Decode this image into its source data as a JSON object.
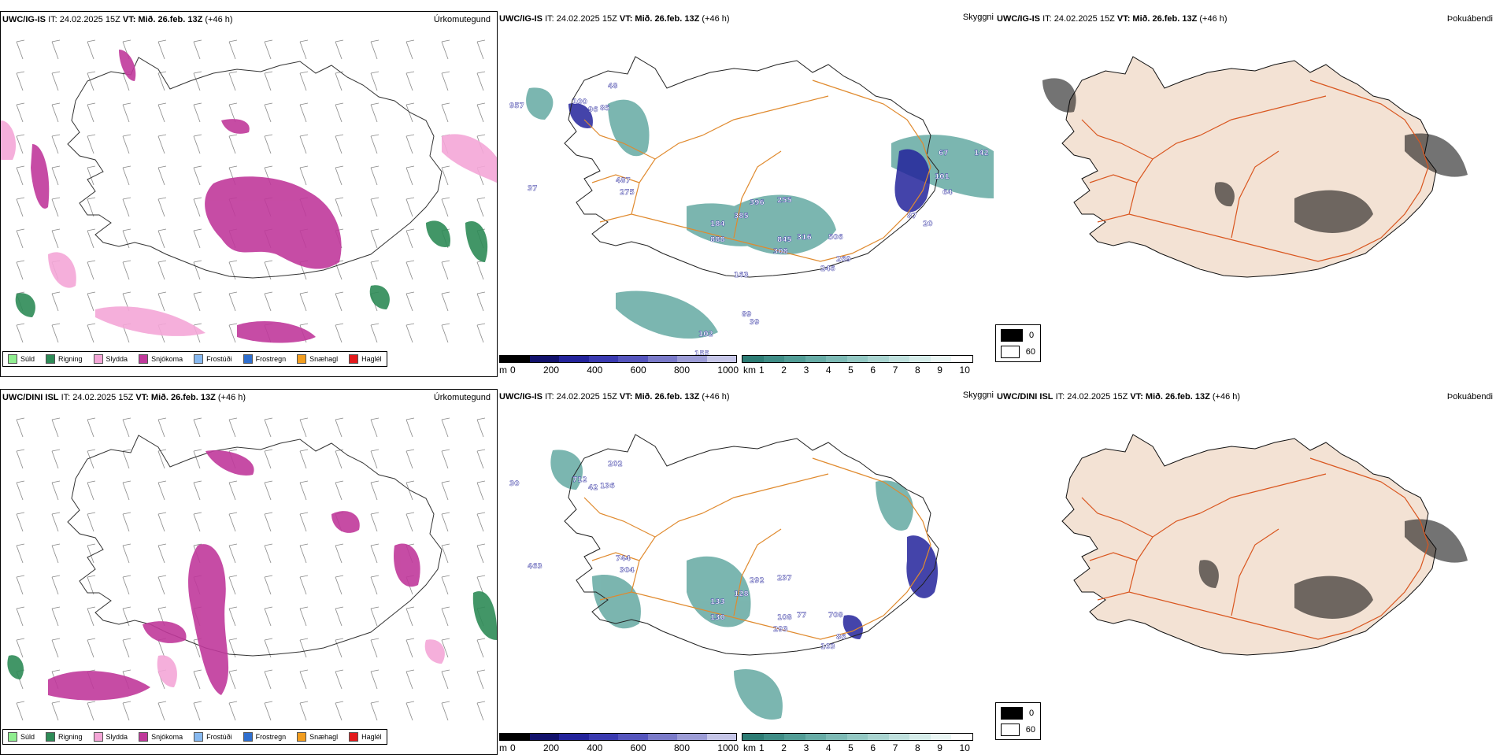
{
  "rows": [
    {
      "precip": {
        "model": "UWC/IG-IS",
        "it": "IT: 24.02.2025 15Z",
        "vt": "VT: Mið. 26.feb. 13Z",
        "lead": "(+46 h)",
        "type": "Úrkomutegund"
      },
      "cloud": {
        "model": "UWC/IG-IS",
        "it": "IT: 24.02.2025 15Z",
        "vt": "VT: Mið. 26.feb. 13Z",
        "lead": "(+46 h)",
        "type": "Skyggni"
      },
      "fog": {
        "model": "UWC/IG-IS",
        "it": "IT: 24.02.2025 15Z",
        "vt": "VT: Mið. 26.feb. 13Z",
        "lead": "(+46 h)",
        "type": "Þokuábendi"
      },
      "cloud_labels": [
        "957",
        "100",
        "96",
        "85",
        "48",
        "487",
        "275",
        "37",
        "396",
        "385",
        "255",
        "184",
        "888",
        "845",
        "316",
        "506",
        "308",
        "269",
        "246",
        "163",
        "67",
        "142",
        "101",
        "64",
        "87",
        "20",
        "155",
        "102",
        "89",
        "39"
      ]
    },
    {
      "precip": {
        "model": "UWC/DINI ISL",
        "it": "IT: 24.02.2025 15Z",
        "vt": "VT: Mið. 26.feb. 13Z",
        "lead": "(+46 h)",
        "type": "Úrkomutegund"
      },
      "cloud": {
        "model": "UWC/IG-IS",
        "it": "IT: 24.02.2025 15Z",
        "vt": "VT: Mið. 26.feb. 13Z",
        "lead": "(+46 h)",
        "type": "Skyggni"
      },
      "fog": {
        "model": "UWC/DINI ISL",
        "it": "IT: 24.02.2025 15Z",
        "vt": "VT: Mið. 26.feb. 13Z",
        "lead": "(+46 h)",
        "type": "Þokuábendi"
      },
      "cloud_labels": [
        "30",
        "712",
        "42",
        "136",
        "202",
        "744",
        "304",
        "463",
        "292",
        "128",
        "237",
        "133",
        "130",
        "108",
        "77",
        "708",
        "293",
        "86",
        "103"
      ]
    }
  ],
  "precip_legend": [
    {
      "label": "Súld",
      "color": "#90ee90"
    },
    {
      "label": "Rigning",
      "color": "#2e8b57"
    },
    {
      "label": "Slydda",
      "color": "#f4a6d7"
    },
    {
      "label": "Snjókoma",
      "color": "#c0399b"
    },
    {
      "label": "Frostúði",
      "color": "#87b9f0"
    },
    {
      "label": "Frostregn",
      "color": "#2f6fcf"
    },
    {
      "label": "Snæhagl",
      "color": "#f29d1e"
    },
    {
      "label": "Haglél",
      "color": "#e31a1c"
    }
  ],
  "cloudbase_scale": {
    "unit": "m",
    "ticks": [
      "0",
      "200",
      "400",
      "600",
      "800",
      "1000"
    ],
    "colors": [
      "#000000",
      "#11116b",
      "#23239b",
      "#3a3ab0",
      "#5555bd",
      "#7a7ac9",
      "#9c9cd6",
      "#c6c6e8"
    ]
  },
  "visibility_scale": {
    "unit": "km",
    "ticks": [
      "1",
      "2",
      "3",
      "4",
      "5",
      "6",
      "7",
      "8",
      "9",
      "10"
    ],
    "colors": [
      "#2d7c74",
      "#3f8d86",
      "#529d96",
      "#67aca6",
      "#7dbab5",
      "#93c8c3",
      "#a9d4d0",
      "#bfe0dd",
      "#d5ece9",
      "#eaf6f4",
      "#ffffff"
    ]
  },
  "fog_legend": [
    {
      "label": "0",
      "color": "#000000"
    },
    {
      "label": "60",
      "color": "#ffffff"
    }
  ],
  "colors": {
    "land": "#f3e2d4",
    "roads": "#d9561f",
    "roads_cloud": "#e08a2e",
    "rivers": "#7b8fe0",
    "coast": "#111111"
  }
}
